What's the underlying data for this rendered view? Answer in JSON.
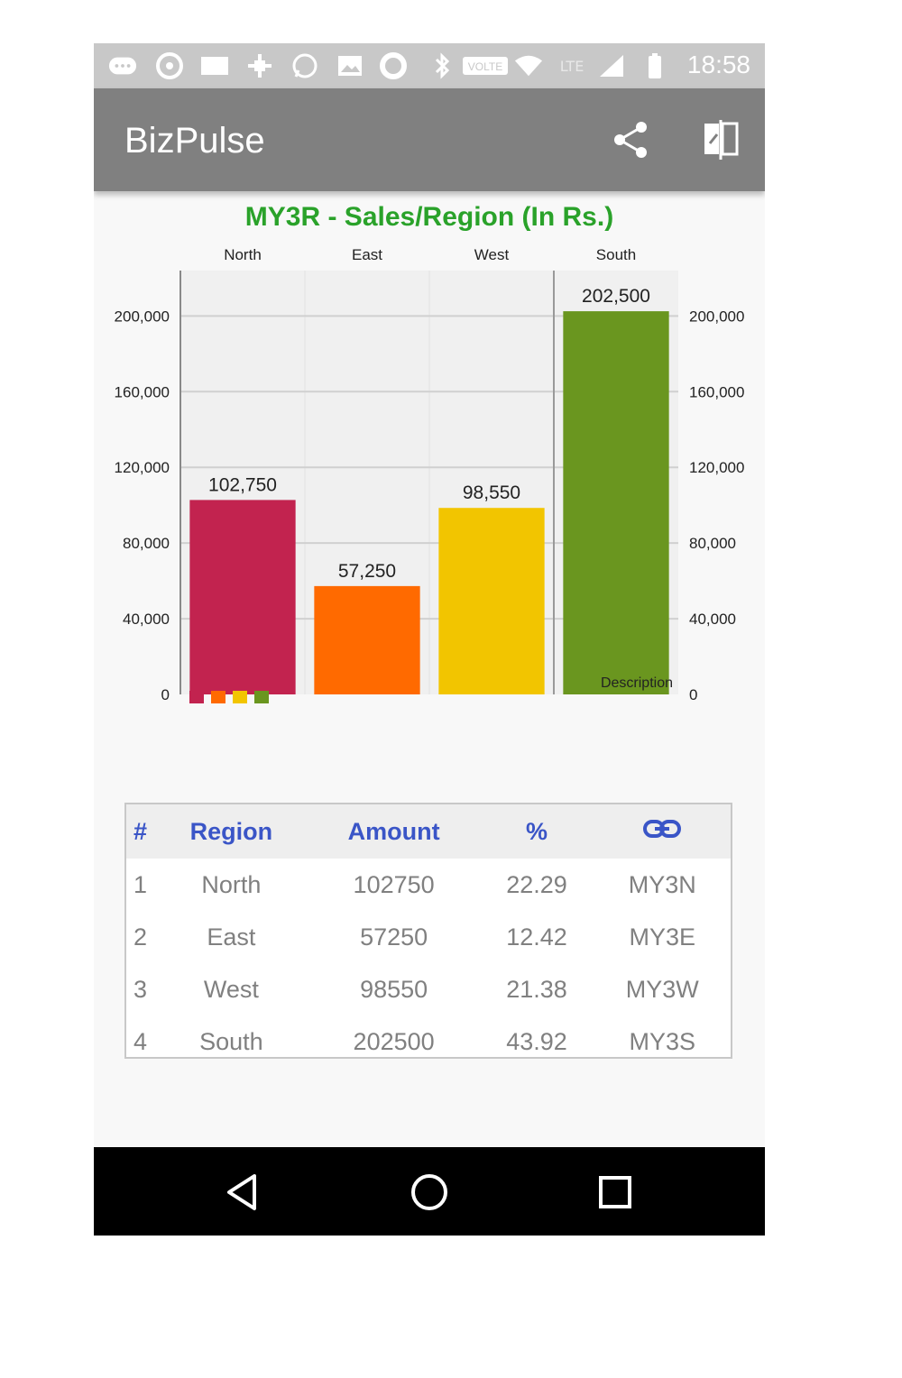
{
  "status_bar": {
    "time": "18:58",
    "icons": [
      "message-icon",
      "settings-ring-icon",
      "card-icon",
      "move-icon",
      "whatsapp-icon",
      "image-icon",
      "sync-icon",
      "bluetooth-icon",
      "volte-icon",
      "wifi-icon",
      "lte-icon",
      "signal-icon",
      "battery-icon"
    ],
    "volte_label": "VOLTE",
    "lte_label": "LTE"
  },
  "app_bar": {
    "title": "BizPulse",
    "actions": [
      "share-icon",
      "compare-icon"
    ]
  },
  "chart_data": {
    "type": "bar",
    "title": "MY3R - Sales/Region (In Rs.)",
    "categories": [
      "North",
      "East",
      "West",
      "South"
    ],
    "values": [
      102750,
      57250,
      98550,
      202500
    ],
    "value_labels": [
      "102,750",
      "57,250",
      "98,550",
      "202,500"
    ],
    "colors": [
      "#c2234f",
      "#ff6a00",
      "#f2c500",
      "#6a961f"
    ],
    "ylim": [
      0,
      224000
    ],
    "yticks": [
      0,
      40000,
      80000,
      120000,
      160000,
      200000
    ],
    "ytick_labels": [
      "0",
      "40,000",
      "80,000",
      "120,000",
      "160,000",
      "200,000"
    ],
    "xlabel": "",
    "ylabel": "",
    "description": "Description",
    "grid": true,
    "legend_position": "bottom-left",
    "highlighted_category": "South"
  },
  "table": {
    "headers": [
      "#",
      "Region",
      "Amount",
      "%"
    ],
    "link_header_icon": "link-icon",
    "rows": [
      [
        "1",
        "North",
        "102750",
        "22.29",
        "MY3N"
      ],
      [
        "2",
        "East",
        "57250",
        "12.42",
        "MY3E"
      ],
      [
        "3",
        "West",
        "98550",
        "21.38",
        "MY3W"
      ],
      [
        "4",
        "South",
        "202500",
        "43.92",
        "MY3S"
      ]
    ]
  },
  "nav_bar": {
    "buttons": [
      "back-icon",
      "home-icon",
      "recents-icon"
    ]
  },
  "colors": {
    "title_green": "#2aa22a",
    "header_blue": "#3a55c7",
    "app_bar_gray": "#808080"
  }
}
